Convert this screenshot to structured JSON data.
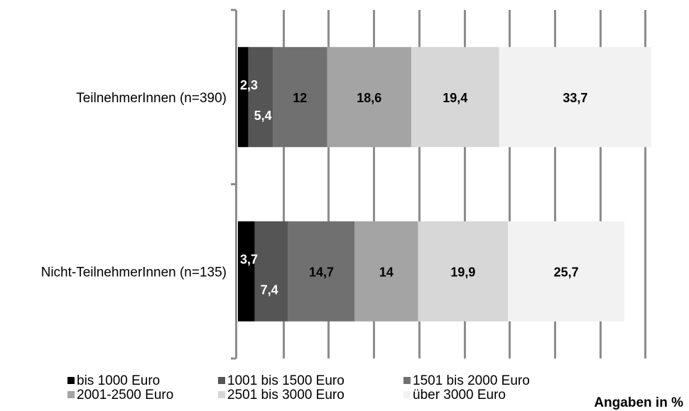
{
  "chart_data": {
    "type": "bar",
    "orientation": "horizontal",
    "stacked": true,
    "categories": [
      "TeilnehmerInnen (n=390)",
      "Nicht-TeilnehmerInnen (n=135)"
    ],
    "series": [
      {
        "name": "bis 1000 Euro",
        "values": [
          2.3,
          3.7
        ],
        "color": "#000000",
        "label_color": "#ffffff",
        "labels": [
          "2,3",
          "3,7"
        ]
      },
      {
        "name": "1001 bis 1500 Euro",
        "values": [
          5.4,
          7.4
        ],
        "color": "#555555",
        "label_color": "#ffffff",
        "labels": [
          "5,4",
          "7,4"
        ]
      },
      {
        "name": "1501 bis 2000 Euro",
        "values": [
          12,
          14.7
        ],
        "color": "#707070",
        "label_color": "#000000",
        "labels": [
          "12",
          "14,7"
        ]
      },
      {
        "name": "2001-2500 Euro",
        "values": [
          18.6,
          14
        ],
        "color": "#a4a4a4",
        "label_color": "#000000",
        "labels": [
          "18,6",
          "14"
        ]
      },
      {
        "name": "2501 bis 3000 Euro",
        "values": [
          19.4,
          19.9
        ],
        "color": "#d7d7d7",
        "label_color": "#000000",
        "labels": [
          "19,4",
          "19,9"
        ]
      },
      {
        "name": "über 3000 Euro",
        "values": [
          33.7,
          25.7
        ],
        "color": "#f2f2f2",
        "label_color": "#000000",
        "labels": [
          "33,7",
          "25,7"
        ]
      }
    ],
    "xlim": [
      0,
      100
    ],
    "xtick_step": 10,
    "grid": true,
    "legend_position": "bottom-left",
    "annotation": "Angaben in %"
  }
}
